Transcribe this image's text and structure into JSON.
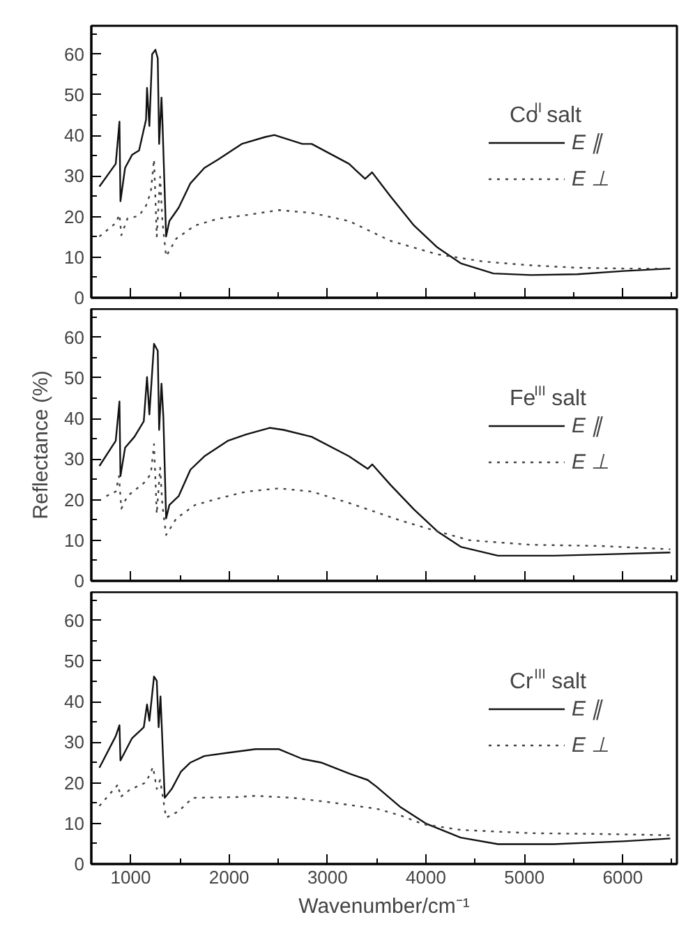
{
  "chart_data": [
    {
      "type": "line",
      "legend_title": "Co$^{II}$ salt",
      "xlim": [
        600,
        6550
      ],
      "xticks": [
        1000,
        2000,
        3000,
        4000,
        5000,
        6000
      ],
      "ylim": [
        0,
        67
      ],
      "yticks": [
        0,
        10,
        20,
        30,
        40,
        50,
        60
      ],
      "tick_labels": "y",
      "grid": false,
      "legend": "right",
      "series": [
        {
          "name": "E ∥",
          "color": "#111111",
          "line_style": "solid",
          "x": [
            682,
            848,
            886,
            896,
            943,
            1014,
            1085,
            1156,
            1166,
            1190,
            1218,
            1251,
            1275,
            1289,
            1313,
            1322,
            1360,
            1393,
            1488,
            1607,
            1749,
            1891,
            2128,
            2365,
            2460,
            2744,
            2839,
            3218,
            3382,
            3453,
            3642,
            3879,
            4116,
            4353,
            4685,
            5063,
            5537,
            6010,
            6483
          ],
          "values": [
            27.4,
            33,
            43.4,
            23.8,
            32,
            35.2,
            36.3,
            43.9,
            51.7,
            42.3,
            60,
            61.1,
            59,
            37.9,
            49.3,
            43.9,
            15.1,
            18.9,
            22.2,
            28.2,
            32,
            34.1,
            37.9,
            39.6,
            40.1,
            37.9,
            37.9,
            33,
            29.3,
            30.9,
            24.9,
            17.8,
            12.4,
            8.5,
            6.0,
            5.6,
            5.8,
            6.6,
            7.2
          ]
        },
        {
          "name": "E ⊥",
          "color": "#444444",
          "line_style": "dotted",
          "x": [
            682,
            848,
            886,
            905,
            967,
            1085,
            1156,
            1204,
            1237,
            1265,
            1299,
            1322,
            1360,
            1464,
            1654,
            1891,
            2128,
            2507,
            2839,
            3218,
            3642,
            4116,
            4590,
            5063,
            5537,
            6010,
            6483
          ],
          "values": [
            15.1,
            18.4,
            20.5,
            15.4,
            19.5,
            20.2,
            22.7,
            26,
            34.1,
            15.1,
            29.8,
            18.9,
            10.2,
            14.6,
            17.8,
            19.5,
            20.2,
            21.6,
            20.9,
            18.9,
            14.0,
            10.7,
            8.9,
            8.0,
            7.4,
            7.2,
            7.2
          ]
        }
      ]
    },
    {
      "type": "line",
      "legend_title": "Fe$^{III}$ salt",
      "ylabel": "Reflectance (%)",
      "xlim": [
        600,
        6550
      ],
      "xticks": [
        1000,
        2000,
        3000,
        4000,
        5000,
        6000
      ],
      "ylim": [
        0,
        67
      ],
      "yticks": [
        0,
        10,
        20,
        30,
        40,
        50,
        60
      ],
      "tick_labels": "y",
      "grid": false,
      "legend": "right",
      "series": [
        {
          "name": "E ∥",
          "color": "#111111",
          "line_style": "solid",
          "x": [
            682,
            848,
            886,
            896,
            943,
            1038,
            1133,
            1166,
            1190,
            1237,
            1275,
            1289,
            1313,
            1332,
            1360,
            1393,
            1488,
            1607,
            1749,
            1986,
            2175,
            2412,
            2555,
            2839,
            3218,
            3408,
            3455,
            3642,
            3879,
            4116,
            4353,
            4732,
            5300,
            5774,
            6483
          ],
          "values": [
            28.3,
            34.5,
            44.2,
            25.8,
            32.8,
            35.5,
            39.3,
            50.2,
            41,
            58.4,
            56.7,
            37.2,
            48.6,
            40.4,
            15.4,
            18.7,
            20.9,
            27.4,
            30.7,
            34.5,
            36.1,
            37.7,
            37.2,
            35.5,
            30.7,
            27.6,
            28.7,
            23.6,
            17.6,
            12.2,
            8.4,
            6.2,
            6.2,
            6.5,
            7.0
          ]
        },
        {
          "name": "E ⊥",
          "color": "#444444",
          "line_style": "dotted",
          "x": [
            753,
            848,
            881,
            905,
            967,
            1133,
            1204,
            1237,
            1265,
            1299,
            1322,
            1360,
            1464,
            1654,
            1891,
            2175,
            2507,
            2839,
            3218,
            3739,
            4116,
            4447,
            5063,
            5774,
            6483
          ],
          "values": [
            20.9,
            22,
            25.8,
            17.8,
            20.9,
            24.1,
            26.3,
            33.7,
            16.5,
            27.9,
            18.7,
            11.3,
            15.4,
            18.7,
            20.3,
            22,
            22.8,
            22,
            19.2,
            14.9,
            12.2,
            10.0,
            8.9,
            8.6,
            7.8
          ]
        }
      ]
    },
    {
      "type": "line",
      "legend_title": "Cr$^{III}$ salt",
      "xlabel": "Wavenumber/cm⁻¹",
      "xlim": [
        600,
        6550
      ],
      "xticks": [
        1000,
        2000,
        3000,
        4000,
        5000,
        6000
      ],
      "ylim": [
        0,
        67
      ],
      "yticks": [
        0,
        10,
        20,
        30,
        40,
        50,
        60
      ],
      "grid": false,
      "legend": "right",
      "series": [
        {
          "name": "E ∥",
          "color": "#111111",
          "line_style": "solid",
          "x": [
            682,
            848,
            886,
            896,
            943,
            1014,
            1133,
            1166,
            1190,
            1237,
            1265,
            1284,
            1303,
            1346,
            1417,
            1512,
            1607,
            1749,
            1986,
            2270,
            2507,
            2744,
            2934,
            3218,
            3408,
            3500,
            3737,
            3998,
            4353,
            4732,
            5300,
            6010,
            6483
          ],
          "values": [
            23.7,
            31.5,
            34.2,
            25.5,
            27.7,
            31,
            33.7,
            39.3,
            35.3,
            46.2,
            45.1,
            33.7,
            41.3,
            16.3,
            18.5,
            22.8,
            25,
            26.6,
            27.4,
            28.3,
            28.3,
            25.9,
            25,
            22.3,
            20.7,
            19.0,
            14.1,
            10.0,
            6.5,
            4.9,
            4.9,
            5.6,
            6.3
          ]
        },
        {
          "name": "E ⊥",
          "color": "#444444",
          "line_style": "dotted",
          "x": [
            682,
            872,
            896,
            991,
            1156,
            1227,
            1265,
            1299,
            1360,
            1488,
            1630,
            2081,
            2270,
            2649,
            3028,
            3502,
            3737,
            3974,
            4353,
            5063,
            5774,
            6483
          ],
          "values": [
            14.3,
            19.6,
            16.5,
            18.3,
            20.1,
            23.9,
            18.5,
            20.7,
            11.4,
            13,
            16.3,
            16.5,
            16.8,
            16.3,
            15.2,
            13.6,
            12.0,
            9.8,
            8.4,
            7.6,
            7.4,
            7.1
          ]
        }
      ]
    }
  ]
}
